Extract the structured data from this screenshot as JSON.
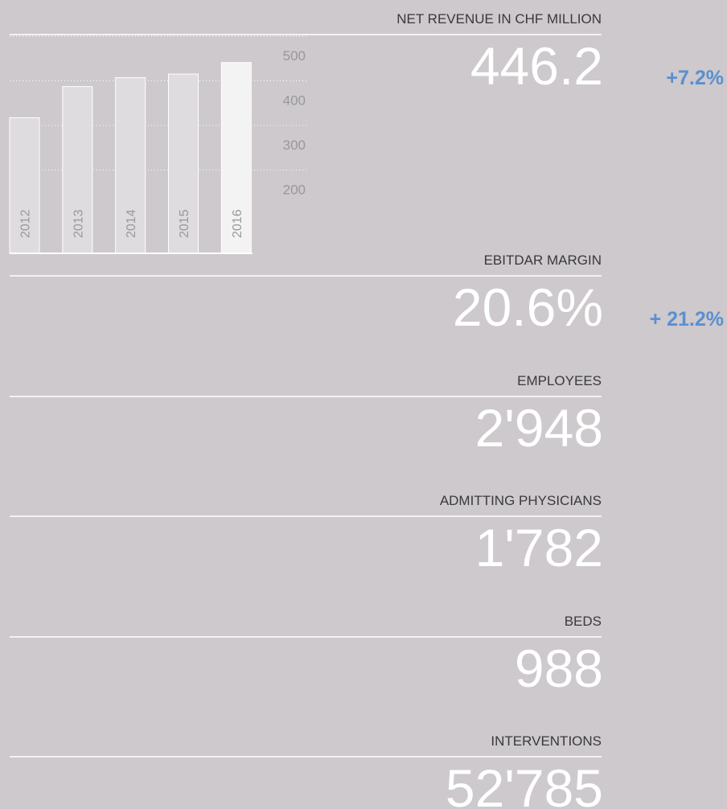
{
  "chart_data": {
    "type": "bar",
    "categories": [
      "2012",
      "2013",
      "2014",
      "2015",
      "2016"
    ],
    "values": [
      317,
      387,
      407,
      415,
      441
    ],
    "color": "#dedcde",
    "highlight_color": "#f3f3f3",
    "ylim": [
      13,
      500
    ],
    "yticks": [
      200,
      300,
      400,
      500
    ],
    "grid": true
  },
  "metrics": [
    {
      "label": "NET REVENUE IN CHF MILLION",
      "value": "446.2",
      "change": "+7.2%"
    },
    {
      "label": "EBITDAR MARGIN",
      "value": "20.6%",
      "change": "+ 21.2%"
    },
    {
      "label": "EMPLOYEES",
      "value": "2'948"
    },
    {
      "label": "ADMITTING PHYSICIANS",
      "value": "1'782"
    },
    {
      "label": "BEDS",
      "value": "988"
    },
    {
      "label": "INTERVENTIONS",
      "value": "52'785"
    }
  ]
}
